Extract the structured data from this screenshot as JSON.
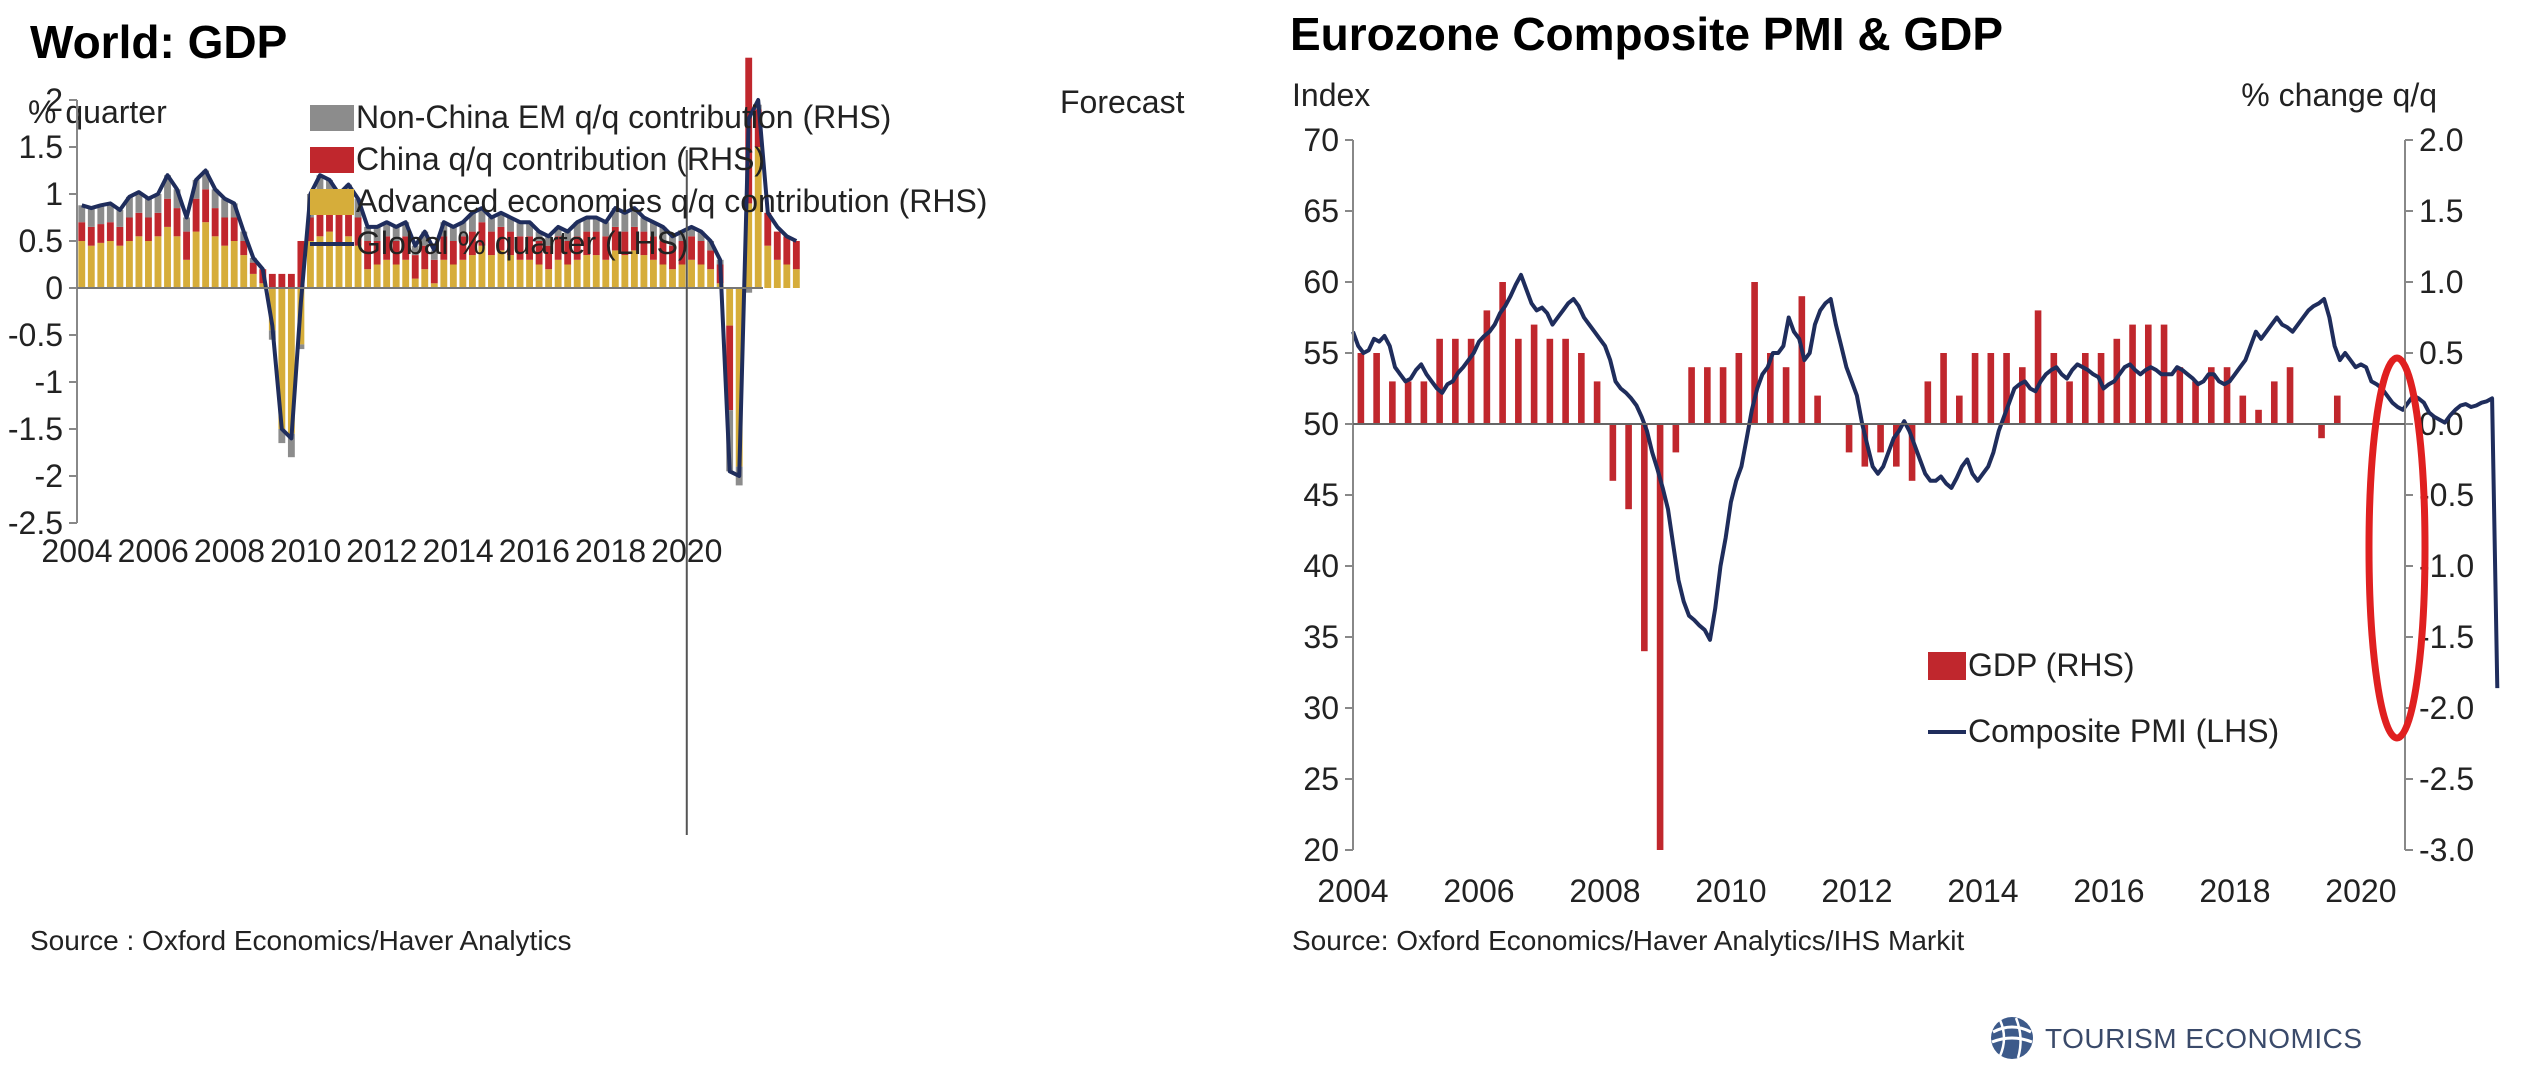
{
  "chart_data": [
    {
      "type": "bar",
      "title": "World: GDP",
      "ylabel": "% quarter",
      "annotation": "Forecast",
      "source": "Source : Oxford Economics/Haver Analytics",
      "ylim": [
        -2.5,
        2
      ],
      "yticks": [
        2,
        1.5,
        1,
        0.5,
        0,
        -0.5,
        -1,
        -1.5,
        -2,
        -2.5
      ],
      "ytick_labels": [
        "2",
        "1.5",
        "1",
        "0.5",
        "0",
        "-0.5",
        "-1",
        "-1.5",
        "-2",
        "-2.5"
      ],
      "xlim": [
        2004,
        2022
      ],
      "xticks": [
        2004,
        2006,
        2008,
        2010,
        2012,
        2014,
        2016,
        2018,
        2020
      ],
      "forecast_start": 2020.0,
      "legend": [
        {
          "label": "Non-China EM q/q contribution (RHS)",
          "color": "#8c8c8c",
          "kind": "bar"
        },
        {
          "label": "China q/q contribution (RHS)",
          "color": "#c0272d",
          "kind": "bar"
        },
        {
          "label": "Advanced economies q/q contribution (RHS)",
          "color": "#d6ad3a",
          "kind": "bar"
        },
        {
          "label": "Global % quarter (LHS)",
          "color": "#1f2d5c",
          "kind": "line"
        }
      ],
      "quarter_start": 2004.0,
      "series": [
        {
          "name": "Advanced economies q/q contribution (RHS)",
          "color": "#d6ad3a",
          "values": [
            0.5,
            0.45,
            0.48,
            0.5,
            0.45,
            0.5,
            0.55,
            0.5,
            0.55,
            0.65,
            0.55,
            0.3,
            0.6,
            0.7,
            0.55,
            0.45,
            0.5,
            0.35,
            0.15,
            0.05,
            -0.45,
            -1.5,
            -1.55,
            -0.6,
            0.5,
            0.55,
            0.6,
            0.45,
            0.55,
            0.45,
            0.2,
            0.25,
            0.3,
            0.25,
            0.3,
            0.1,
            0.2,
            0.05,
            0.3,
            0.25,
            0.3,
            0.35,
            0.45,
            0.35,
            0.4,
            0.35,
            0.3,
            0.3,
            0.25,
            0.2,
            0.3,
            0.25,
            0.3,
            0.35,
            0.35,
            0.3,
            0.4,
            0.35,
            0.4,
            0.35,
            0.3,
            0.25,
            0.2,
            0.25,
            0.3,
            0.25,
            0.2,
            0.05,
            -0.4,
            -1.9,
            0.9,
            1.5,
            0.45,
            0.3,
            0.25,
            0.2
          ]
        },
        {
          "name": "China q/q contribution (RHS)",
          "color": "#c0272d",
          "values": [
            0.2,
            0.2,
            0.2,
            0.2,
            0.2,
            0.25,
            0.25,
            0.25,
            0.25,
            0.3,
            0.3,
            0.3,
            0.35,
            0.35,
            0.3,
            0.3,
            0.25,
            0.15,
            0.12,
            0.15,
            0.15,
            0.15,
            0.15,
            0.5,
            0.25,
            0.35,
            0.3,
            0.35,
            0.3,
            0.3,
            0.3,
            0.25,
            0.25,
            0.25,
            0.25,
            0.25,
            0.25,
            0.25,
            0.25,
            0.25,
            0.25,
            0.25,
            0.25,
            0.25,
            0.25,
            0.25,
            0.25,
            0.25,
            0.25,
            0.25,
            0.25,
            0.25,
            0.25,
            0.25,
            0.25,
            0.25,
            0.25,
            0.25,
            0.25,
            0.25,
            0.25,
            0.25,
            0.25,
            0.25,
            0.25,
            0.25,
            0.2,
            0.2,
            -0.9,
            0.0,
            1.55,
            0.4,
            0.35,
            0.3,
            0.3,
            0.3
          ]
        },
        {
          "name": "Non-China EM q/q contribution (RHS)",
          "color": "#8c8c8c",
          "values": [
            0.18,
            0.2,
            0.2,
            0.2,
            0.18,
            0.22,
            0.22,
            0.2,
            0.2,
            0.25,
            0.2,
            0.15,
            0.2,
            0.2,
            0.2,
            0.2,
            0.15,
            0.1,
            0.05,
            0.0,
            -0.1,
            -0.15,
            -0.25,
            -0.05,
            0.25,
            0.3,
            0.25,
            0.2,
            0.25,
            0.2,
            0.15,
            0.15,
            0.15,
            0.15,
            0.15,
            0.1,
            0.15,
            0.1,
            0.15,
            0.15,
            0.15,
            0.2,
            0.15,
            0.15,
            0.15,
            0.15,
            0.15,
            0.15,
            0.1,
            0.1,
            0.1,
            0.1,
            0.15,
            0.15,
            0.15,
            0.15,
            0.2,
            0.2,
            0.2,
            0.15,
            0.15,
            0.15,
            0.1,
            0.1,
            0.1,
            0.1,
            0.1,
            0.05,
            -0.65,
            -0.2,
            -0.05,
            0.05,
            0.0,
            0.0,
            0.0,
            0.0
          ]
        },
        {
          "name": "Global % quarter (LHS)",
          "color": "#1f2d5c",
          "values": [
            0.88,
            0.85,
            0.88,
            0.9,
            0.83,
            0.97,
            1.02,
            0.95,
            1.0,
            1.2,
            1.05,
            0.75,
            1.15,
            1.25,
            1.05,
            0.95,
            0.9,
            0.6,
            0.32,
            0.2,
            -0.4,
            -1.5,
            -1.6,
            -0.15,
            1.0,
            1.2,
            1.15,
            1.0,
            1.1,
            0.95,
            0.65,
            0.65,
            0.7,
            0.65,
            0.7,
            0.45,
            0.6,
            0.4,
            0.7,
            0.65,
            0.7,
            0.8,
            0.85,
            0.75,
            0.8,
            0.75,
            0.7,
            0.7,
            0.6,
            0.55,
            0.65,
            0.6,
            0.7,
            0.75,
            0.75,
            0.7,
            0.85,
            0.8,
            0.85,
            0.75,
            0.7,
            0.65,
            0.55,
            0.6,
            0.65,
            0.6,
            0.5,
            0.3,
            -1.95,
            -2.0,
            1.8,
            2.0,
            0.8,
            0.65,
            0.55,
            0.5
          ]
        }
      ]
    },
    {
      "type": "bar+line",
      "title": "Eurozone Composite PMI & GDP",
      "ylabel_left": "Index",
      "ylabel_right": "% change q/q",
      "source": "Source: Oxford Economics/Haver Analytics/IHS Markit",
      "ylim_left": [
        20,
        70
      ],
      "ylim_right": [
        -3.0,
        2.0
      ],
      "yticks_left": [
        "70",
        "65",
        "60",
        "55",
        "50",
        "45",
        "40",
        "35",
        "30",
        "25",
        "20"
      ],
      "yticks_right": [
        "2.0",
        "1.5",
        "1.0",
        "0.5",
        "0.0",
        "-0.5",
        "-1.0",
        "-1.5",
        "-2.0",
        "-2.5",
        "-3.0"
      ],
      "xlim": [
        2004,
        2020.7
      ],
      "xticks": [
        2004,
        2006,
        2008,
        2010,
        2012,
        2014,
        2016,
        2018,
        2020
      ],
      "legend": [
        {
          "label": "GDP (RHS)",
          "color": "#c0272d",
          "kind": "bar"
        },
        {
          "label": "Composite PMI (LHS)",
          "color": "#1f2d5c",
          "kind": "line"
        }
      ],
      "gdp_quarter_start": 2004.0,
      "gdp": [
        0.5,
        0.5,
        0.3,
        0.3,
        0.3,
        0.6,
        0.6,
        0.6,
        0.8,
        1.0,
        0.6,
        0.7,
        0.6,
        0.6,
        0.5,
        0.3,
        -0.4,
        -0.6,
        -1.6,
        -3.0,
        -0.2,
        0.4,
        0.4,
        0.4,
        0.5,
        1.0,
        0.5,
        0.4,
        0.9,
        0.2,
        0.0,
        -0.2,
        -0.3,
        -0.2,
        -0.3,
        -0.4,
        0.3,
        0.5,
        0.2,
        0.5,
        0.5,
        0.5,
        0.4,
        0.8,
        0.5,
        0.3,
        0.5,
        0.5,
        0.6,
        0.7,
        0.7,
        0.7,
        0.4,
        0.3,
        0.4,
        0.4,
        0.2,
        0.1,
        0.3,
        0.4,
        0.0,
        -0.1,
        0.2
      ],
      "pmi_start": 2004.0,
      "pmi_step": 0.08333,
      "pmi": [
        56.5,
        55.5,
        55.0,
        55.2,
        56.0,
        55.8,
        56.2,
        55.5,
        54.0,
        53.5,
        53.0,
        53.2,
        53.8,
        54.2,
        53.5,
        53.0,
        52.5,
        52.2,
        52.8,
        53.0,
        53.6,
        54.0,
        54.5,
        55.0,
        55.8,
        56.2,
        56.5,
        57.0,
        57.8,
        58.3,
        59.0,
        59.8,
        60.5,
        59.5,
        58.5,
        58.0,
        58.2,
        57.8,
        57.0,
        57.5,
        58.0,
        58.5,
        58.8,
        58.3,
        57.5,
        57.0,
        56.5,
        56.0,
        55.5,
        54.5,
        53.0,
        52.5,
        52.2,
        51.8,
        51.3,
        50.5,
        49.5,
        48.0,
        46.8,
        45.5,
        44.0,
        41.5,
        39.0,
        37.5,
        36.5,
        36.2,
        35.8,
        35.5,
        34.8,
        37.0,
        40.0,
        42.0,
        44.5,
        46.0,
        47.0,
        49.0,
        51.0,
        52.5,
        53.5,
        54.0,
        55.0,
        55.0,
        55.5,
        57.5,
        56.5,
        56.0,
        54.5,
        55.0,
        57.0,
        58.0,
        58.5,
        58.8,
        57.0,
        55.5,
        54.0,
        53.0,
        52.0,
        50.0,
        48.5,
        47.0,
        46.5,
        47.0,
        48.0,
        49.0,
        49.5,
        50.2,
        49.5,
        48.5,
        47.5,
        46.5,
        46.0,
        46.0,
        46.3,
        45.8,
        45.5,
        46.2,
        47.0,
        47.5,
        46.5,
        46.0,
        46.5,
        47.0,
        48.0,
        49.5,
        50.5,
        51.5,
        52.5,
        52.8,
        53.0,
        52.5,
        52.3,
        53.0,
        53.5,
        53.8,
        54.0,
        53.5,
        53.2,
        53.8,
        54.2,
        54.0,
        53.8,
        53.5,
        53.3,
        52.5,
        52.8,
        53.0,
        53.5,
        54.0,
        54.2,
        53.8,
        53.5,
        53.8,
        54.0,
        53.8,
        53.5,
        53.5,
        53.5,
        54.0,
        53.8,
        53.5,
        53.2,
        52.8,
        53.0,
        53.5,
        53.5,
        53.0,
        52.8,
        53.0,
        53.5,
        54.0,
        54.5,
        55.5,
        56.5,
        56.0,
        56.5,
        57.0,
        57.5,
        57.0,
        56.8,
        56.5,
        57.0,
        57.5,
        58.0,
        58.3,
        58.5,
        58.8,
        57.5,
        55.5,
        54.5,
        55.0,
        54.5,
        54.0,
        54.2,
        54.0,
        53.0,
        52.8,
        52.5,
        52.0,
        51.5,
        51.2,
        51.0,
        51.5,
        52.0,
        51.8,
        51.5,
        50.8,
        50.5,
        50.3,
        50.1,
        50.6,
        51.0,
        51.3,
        51.4,
        51.2,
        51.3,
        51.5,
        51.6,
        51.8,
        31.4
      ]
    }
  ],
  "brand": {
    "name": "TOURISM ECONOMICS"
  },
  "annotation_ring": {
    "color": "#e02020"
  }
}
